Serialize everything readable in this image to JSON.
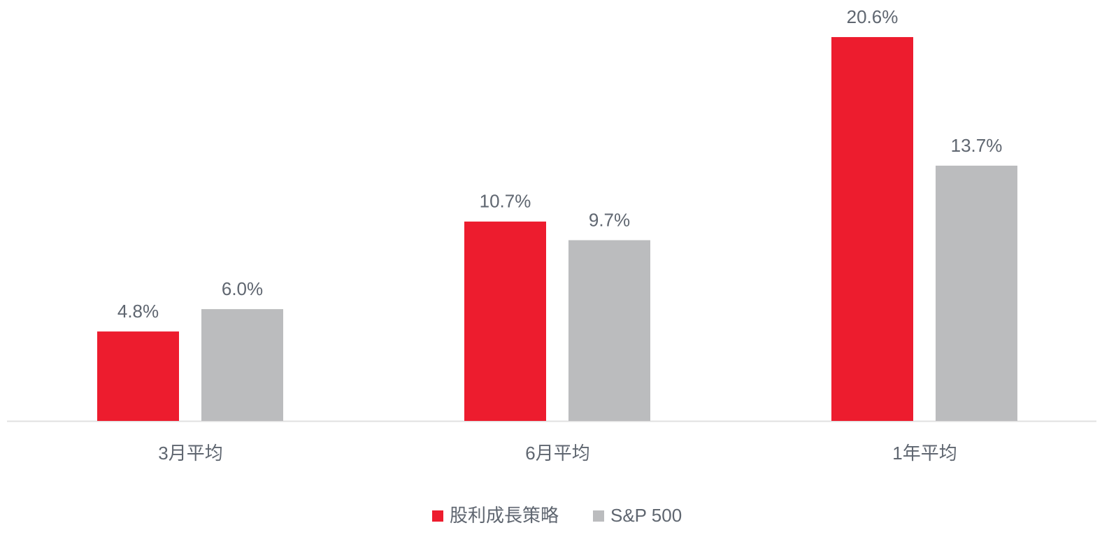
{
  "chart_data": {
    "type": "bar",
    "categories": [
      "3月平均",
      "6月平均",
      "1年平均"
    ],
    "series": [
      {
        "name": "股利成長策略",
        "color": "#ed1c2e",
        "values": [
          4.8,
          10.7,
          20.6
        ],
        "value_labels": [
          "4.8%",
          "10.7%",
          "20.6%"
        ]
      },
      {
        "name": "S&P 500",
        "color": "#bbbcbe",
        "values": [
          6.0,
          9.7,
          13.7
        ],
        "value_labels": [
          "6.0%",
          "9.7%",
          "13.7%"
        ]
      }
    ],
    "ylim": [
      0,
      22.5
    ],
    "legend": "bottom"
  }
}
